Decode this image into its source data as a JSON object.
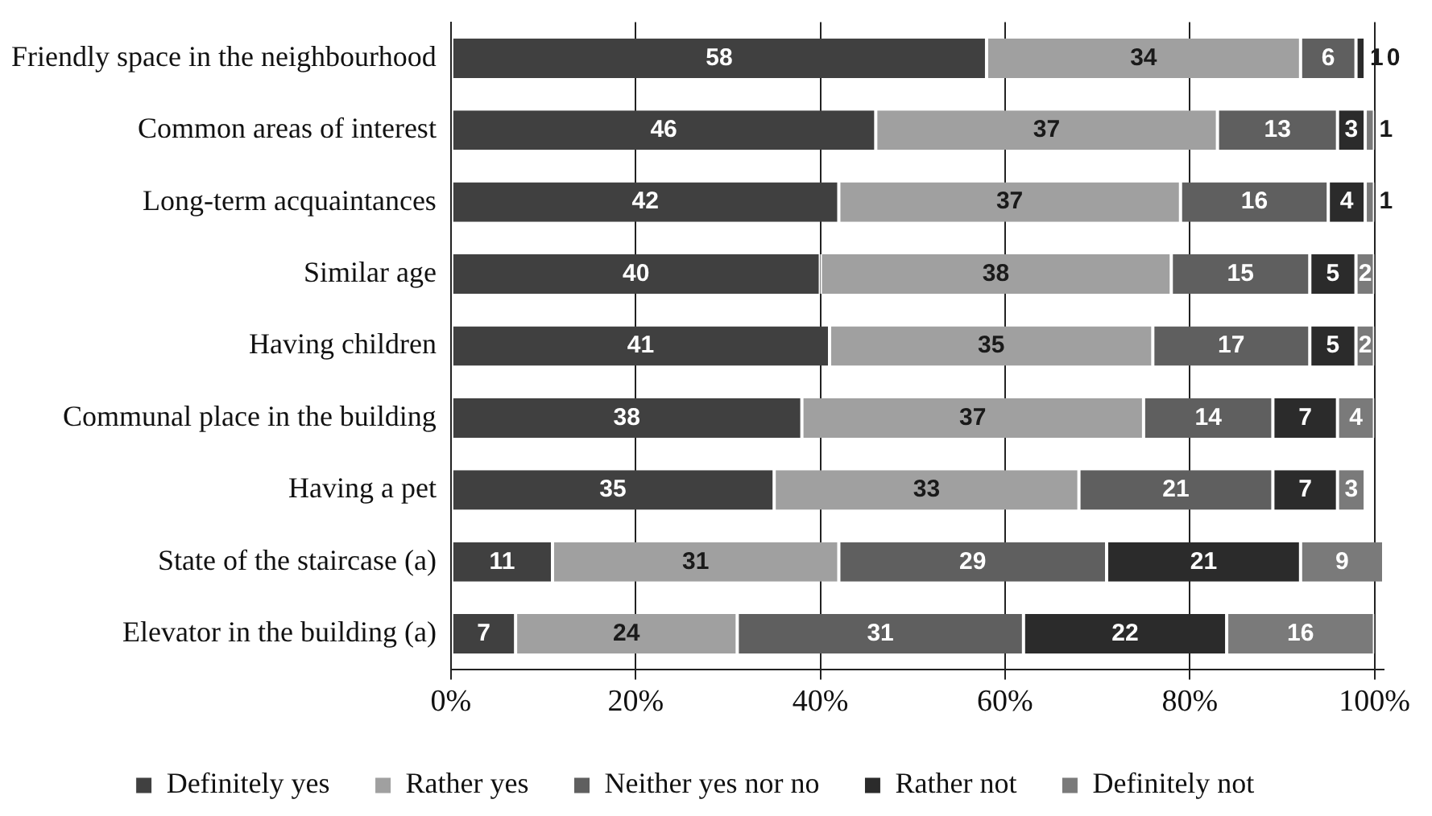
{
  "chart_data": {
    "type": "bar",
    "orientation": "horizontal",
    "stacked": true,
    "categories": [
      "Friendly space in the neighbourhood",
      "Common areas of interest",
      "Long-term acquaintances",
      "Similar age",
      "Having children",
      "Communal place in the building",
      "Having a pet",
      "State of the staircase (a)",
      "Elevator in the building (a)"
    ],
    "series": [
      {
        "name": "Definitely yes",
        "color": "#404040",
        "values": [
          58,
          46,
          42,
          40,
          41,
          38,
          35,
          11,
          7
        ]
      },
      {
        "name": "Rather yes",
        "color": "#a0a0a0",
        "values": [
          34,
          37,
          37,
          38,
          35,
          37,
          33,
          31,
          24
        ]
      },
      {
        "name": "Neither yes nor no",
        "color": "#5f5f5f",
        "values": [
          6,
          13,
          16,
          15,
          17,
          14,
          21,
          29,
          31
        ]
      },
      {
        "name": "Rather not",
        "color": "#2b2b2b",
        "values": [
          1,
          3,
          4,
          5,
          5,
          7,
          7,
          21,
          22
        ]
      },
      {
        "name": "Definitely not",
        "color": "#7a7a7a",
        "values": [
          0,
          1,
          1,
          2,
          2,
          4,
          3,
          9,
          16
        ]
      }
    ],
    "xlim": [
      0,
      101
    ],
    "xticks": [
      {
        "value": 0,
        "label": "0%"
      },
      {
        "value": 20,
        "label": "20%"
      },
      {
        "value": 40,
        "label": "40%"
      },
      {
        "value": 60,
        "label": "60%"
      },
      {
        "value": 80,
        "label": "80%"
      },
      {
        "value": 100,
        "label": "100%"
      }
    ],
    "grid": "x",
    "legend": "bottom",
    "data_labels": true
  }
}
